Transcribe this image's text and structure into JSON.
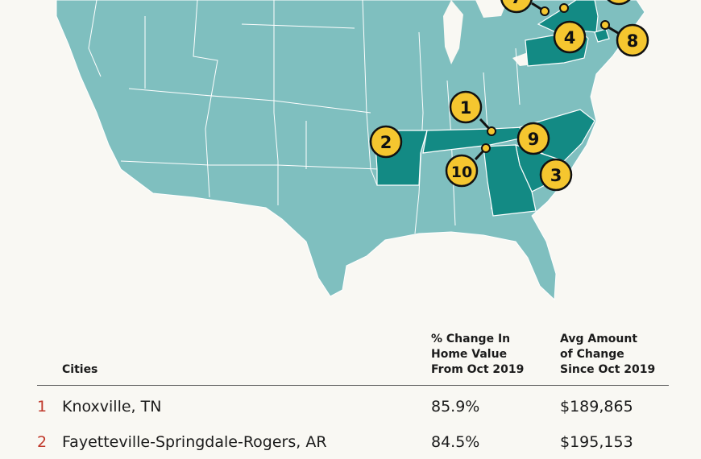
{
  "colors": {
    "background": "#f9f8f3",
    "state_default": "#7fbfbf",
    "state_highlight": "#138a84",
    "state_border": "#ffffff",
    "marker_fill": "#f5c62f",
    "marker_stroke": "#111111",
    "rank_color": "#c0392b"
  },
  "map": {
    "highlighted_states": [
      "TN",
      "AR",
      "NC",
      "SC",
      "GA",
      "PA",
      "NY",
      "CT"
    ],
    "markers": [
      {
        "label": "1"
      },
      {
        "label": "2"
      },
      {
        "label": "3"
      },
      {
        "label": "4"
      },
      {
        "label": "7"
      },
      {
        "label": "8"
      },
      {
        "label": "9"
      },
      {
        "label": "10"
      }
    ]
  },
  "table": {
    "headers": {
      "cities": "Cities",
      "pct_change": [
        "% Change In",
        "Home Value",
        "From Oct 2019"
      ],
      "avg_amount": [
        "Avg Amount",
        "of Change",
        "Since Oct 2019"
      ]
    },
    "rows": [
      {
        "rank": "1",
        "city": "Knoxville, TN",
        "pct": "85.9%",
        "amount": "$189,865"
      },
      {
        "rank": "2",
        "city": "Fayetteville-Springdale-Rogers, AR",
        "pct": "84.5%",
        "amount": "$195,153"
      }
    ]
  }
}
